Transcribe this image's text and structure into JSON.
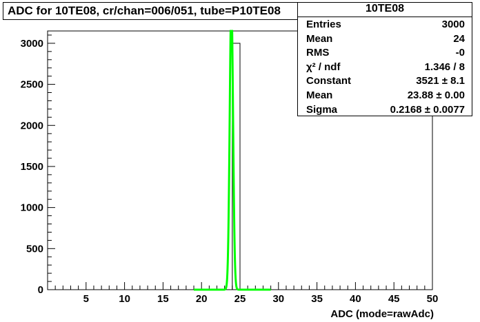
{
  "chart_data": {
    "type": "bar",
    "title": "ADC for 10TE08,  cr/chan=006/051,  tube=P10TE08",
    "xlabel": "ADC (mode=rawAdc)",
    "ylabel": "",
    "xlim": [
      0,
      50
    ],
    "ylim": [
      0,
      3150
    ],
    "x_ticks": [
      5,
      10,
      15,
      20,
      25,
      30,
      35,
      40,
      45,
      50
    ],
    "y_ticks": [
      0,
      500,
      1000,
      1500,
      2000,
      2500,
      3000
    ],
    "histogram": {
      "bin_low": 24,
      "bin_high": 25,
      "count": 3000
    },
    "fit": {
      "name": "gaussian",
      "constant": 3521,
      "mean": 23.88,
      "sigma": 0.2168,
      "color": "#00ff00",
      "range": [
        19,
        29
      ]
    }
  },
  "stats_box": {
    "title": "10TE08",
    "rows": [
      {
        "label": "Entries",
        "value": "3000"
      },
      {
        "label": "Mean",
        "value": "24"
      },
      {
        "label": "RMS",
        "value": "-0"
      },
      {
        "label": "χ² / ndf",
        "value": "1.346 / 8"
      },
      {
        "label": "Constant",
        "value": "3521 ± 8.1"
      },
      {
        "label": "Mean",
        "value": "23.88 ± 0.00"
      },
      {
        "label": "Sigma",
        "value": "0.2168 ± 0.0077"
      }
    ]
  }
}
